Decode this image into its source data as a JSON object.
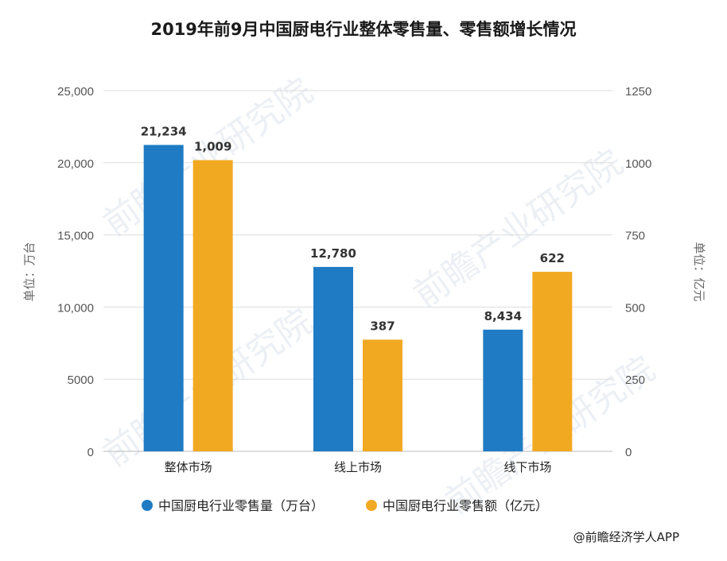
{
  "chart_data": {
    "type": "bar",
    "title": "2019年前9月中国厨电行业整体零售量、零售额增长情况",
    "categories": [
      "整体市场",
      "线上市场",
      "线下市场"
    ],
    "series": [
      {
        "name": "中国厨电行业零售量（万台）",
        "axis": "left",
        "color": "#1f7cc4",
        "values": [
          21234,
          12780,
          8434
        ],
        "labels": [
          "21,234",
          "12,780",
          "8,434"
        ]
      },
      {
        "name": "中国厨电行业零售额（亿元）",
        "axis": "right",
        "color": "#f2a922",
        "values": [
          1009,
          387,
          622
        ],
        "labels": [
          "1,009",
          "387",
          "622"
        ]
      }
    ],
    "y_left": {
      "label": "单位：万台",
      "range": [
        0,
        25000
      ],
      "ticks": [
        0,
        5000,
        10000,
        15000,
        20000,
        25000
      ],
      "tick_labels": [
        "0",
        "5000",
        "10,000",
        "15,000",
        "20,000",
        "25,000"
      ]
    },
    "y_right": {
      "label": "单位：亿元",
      "range": [
        0,
        1250
      ],
      "ticks": [
        0,
        250,
        500,
        750,
        1000,
        1250
      ],
      "tick_labels": [
        "0",
        "250",
        "500",
        "750",
        "1000",
        "1250"
      ]
    },
    "grid": true,
    "legend": "bottom"
  },
  "watermark": "前瞻产业研究院",
  "source": "@前瞻经济学人APP",
  "colors": {
    "grid": "#dddddd",
    "axis": "#bbbbbb"
  }
}
